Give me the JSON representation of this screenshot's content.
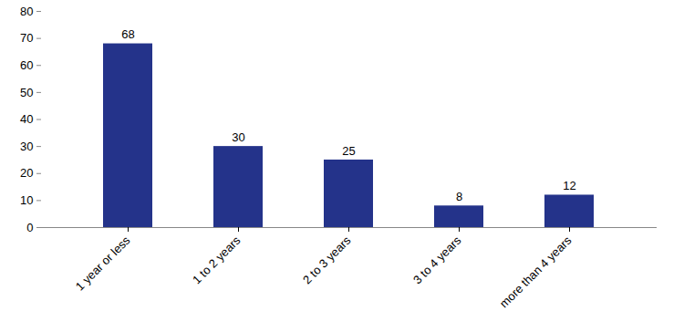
{
  "chart_data": {
    "type": "bar",
    "categories": [
      "1 year or less",
      "1 to 2 years",
      "2 to 3 years",
      "3 to 4 years",
      "more than 4 years"
    ],
    "values": [
      68,
      30,
      25,
      8,
      12
    ],
    "color": "#24338a",
    "ylim": [
      0,
      80
    ],
    "yticks": [
      0,
      10,
      20,
      30,
      40,
      50,
      60,
      70,
      80
    ],
    "grid": false,
    "data_labels": true
  }
}
